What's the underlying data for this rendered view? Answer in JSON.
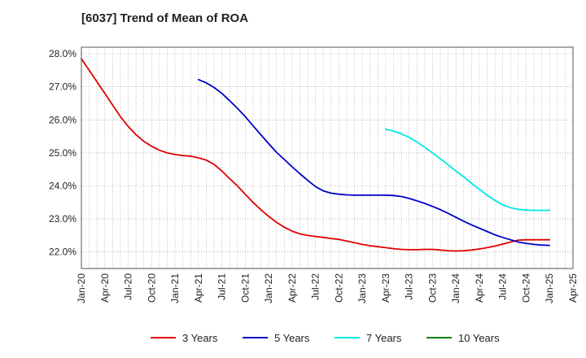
{
  "chart_data": {
    "type": "line",
    "title": "[6037]  Trend of Mean of ROA",
    "xlabel": "",
    "ylabel": "",
    "ylim": [
      21.5,
      28.2
    ],
    "grid": true,
    "legend_position": "bottom",
    "x_ticks": [
      "Jan-20",
      "Apr-20",
      "Jul-20",
      "Oct-20",
      "Jan-21",
      "Apr-21",
      "Jul-21",
      "Oct-21",
      "Jan-22",
      "Apr-22",
      "Jul-22",
      "Oct-22",
      "Jan-23",
      "Apr-23",
      "Jul-23",
      "Oct-23",
      "Jan-24",
      "Apr-24",
      "Jul-24",
      "Oct-24",
      "Jan-25",
      "Apr-25"
    ],
    "y_ticks": [
      22.0,
      23.0,
      24.0,
      25.0,
      26.0,
      27.0,
      28.0
    ],
    "y_tick_labels": [
      "22.0%",
      "23.0%",
      "24.0%",
      "25.0%",
      "26.0%",
      "27.0%",
      "28.0%"
    ],
    "series": [
      {
        "name": "3 Years",
        "color": "#e00000",
        "x": [
          "Jan-20",
          "Feb-20",
          "Mar-20",
          "Apr-20",
          "May-20",
          "Jun-20",
          "Jul-20",
          "Aug-20",
          "Sep-20",
          "Oct-20",
          "Nov-20",
          "Dec-20",
          "Jan-21",
          "Feb-21",
          "Mar-21",
          "Apr-21",
          "May-21",
          "Jun-21",
          "Jul-21",
          "Aug-21",
          "Sep-21",
          "Oct-21",
          "Nov-21",
          "Dec-21",
          "Jan-22",
          "Feb-22",
          "Mar-22",
          "Apr-22",
          "May-22",
          "Jun-22",
          "Jul-22",
          "Aug-22",
          "Sep-22",
          "Oct-22",
          "Nov-22",
          "Dec-22",
          "Jan-23",
          "Feb-23",
          "Mar-23",
          "Apr-23",
          "May-23",
          "Jun-23",
          "Jul-23",
          "Aug-23",
          "Sep-23",
          "Oct-23",
          "Nov-23",
          "Dec-23",
          "Jan-24",
          "Feb-24",
          "Mar-24",
          "Apr-24",
          "May-24",
          "Jun-24",
          "Jul-24",
          "Aug-24",
          "Sep-24",
          "Oct-24",
          "Nov-24",
          "Dec-24",
          "Jan-25"
        ],
        "values": [
          27.85,
          27.5,
          27.15,
          26.8,
          26.45,
          26.1,
          25.8,
          25.55,
          25.35,
          25.2,
          25.08,
          25.0,
          24.95,
          24.92,
          24.9,
          24.85,
          24.78,
          24.65,
          24.45,
          24.22,
          24.0,
          23.75,
          23.5,
          23.28,
          23.08,
          22.9,
          22.75,
          22.63,
          22.55,
          22.5,
          22.47,
          22.44,
          22.41,
          22.38,
          22.33,
          22.28,
          22.23,
          22.19,
          22.16,
          22.13,
          22.1,
          22.08,
          22.07,
          22.07,
          22.08,
          22.08,
          22.06,
          22.04,
          22.03,
          22.04,
          22.06,
          22.09,
          22.13,
          22.18,
          22.24,
          22.3,
          22.36,
          22.37,
          22.37,
          22.37,
          22.37
        ]
      },
      {
        "name": "5 Years",
        "color": "#0000c8",
        "x": [
          "Apr-21",
          "May-21",
          "Jun-21",
          "Jul-21",
          "Aug-21",
          "Sep-21",
          "Oct-21",
          "Nov-21",
          "Dec-21",
          "Jan-22",
          "Feb-22",
          "Mar-22",
          "Apr-22",
          "May-22",
          "Jun-22",
          "Jul-22",
          "Aug-22",
          "Sep-22",
          "Oct-22",
          "Nov-22",
          "Dec-22",
          "Jan-23",
          "Feb-23",
          "Mar-23",
          "Apr-23",
          "May-23",
          "Jun-23",
          "Jul-23",
          "Aug-23",
          "Sep-23",
          "Oct-23",
          "Nov-23",
          "Dec-23",
          "Jan-24",
          "Feb-24",
          "Mar-24",
          "Apr-24",
          "May-24",
          "Jun-24",
          "Jul-24",
          "Aug-24",
          "Sep-24",
          "Oct-24",
          "Nov-24",
          "Dec-24",
          "Jan-25"
        ],
        "values": [
          27.22,
          27.12,
          26.98,
          26.8,
          26.58,
          26.35,
          26.1,
          25.82,
          25.55,
          25.28,
          25.02,
          24.8,
          24.58,
          24.37,
          24.17,
          23.98,
          23.85,
          23.78,
          23.75,
          23.73,
          23.72,
          23.72,
          23.72,
          23.72,
          23.72,
          23.71,
          23.68,
          23.62,
          23.55,
          23.47,
          23.38,
          23.28,
          23.17,
          23.05,
          22.93,
          22.82,
          22.72,
          22.62,
          22.52,
          22.44,
          22.37,
          22.3,
          22.26,
          22.23,
          22.21,
          22.2
        ]
      },
      {
        "name": "7 Years",
        "color": "#00e8e8",
        "x": [
          "Apr-23",
          "May-23",
          "Jun-23",
          "Jul-23",
          "Aug-23",
          "Sep-23",
          "Oct-23",
          "Nov-23",
          "Dec-23",
          "Jan-24",
          "Feb-24",
          "Mar-24",
          "Apr-24",
          "May-24",
          "Jun-24",
          "Jul-24",
          "Aug-24",
          "Sep-24",
          "Oct-24",
          "Nov-24",
          "Dec-24",
          "Jan-25"
        ],
        "values": [
          25.72,
          25.66,
          25.58,
          25.47,
          25.33,
          25.17,
          25.0,
          24.82,
          24.64,
          24.45,
          24.27,
          24.08,
          23.9,
          23.72,
          23.56,
          23.43,
          23.34,
          23.29,
          23.27,
          23.26,
          23.26,
          23.26
        ]
      },
      {
        "name": "10 Years",
        "color": "#008000",
        "x": [],
        "values": []
      }
    ]
  }
}
